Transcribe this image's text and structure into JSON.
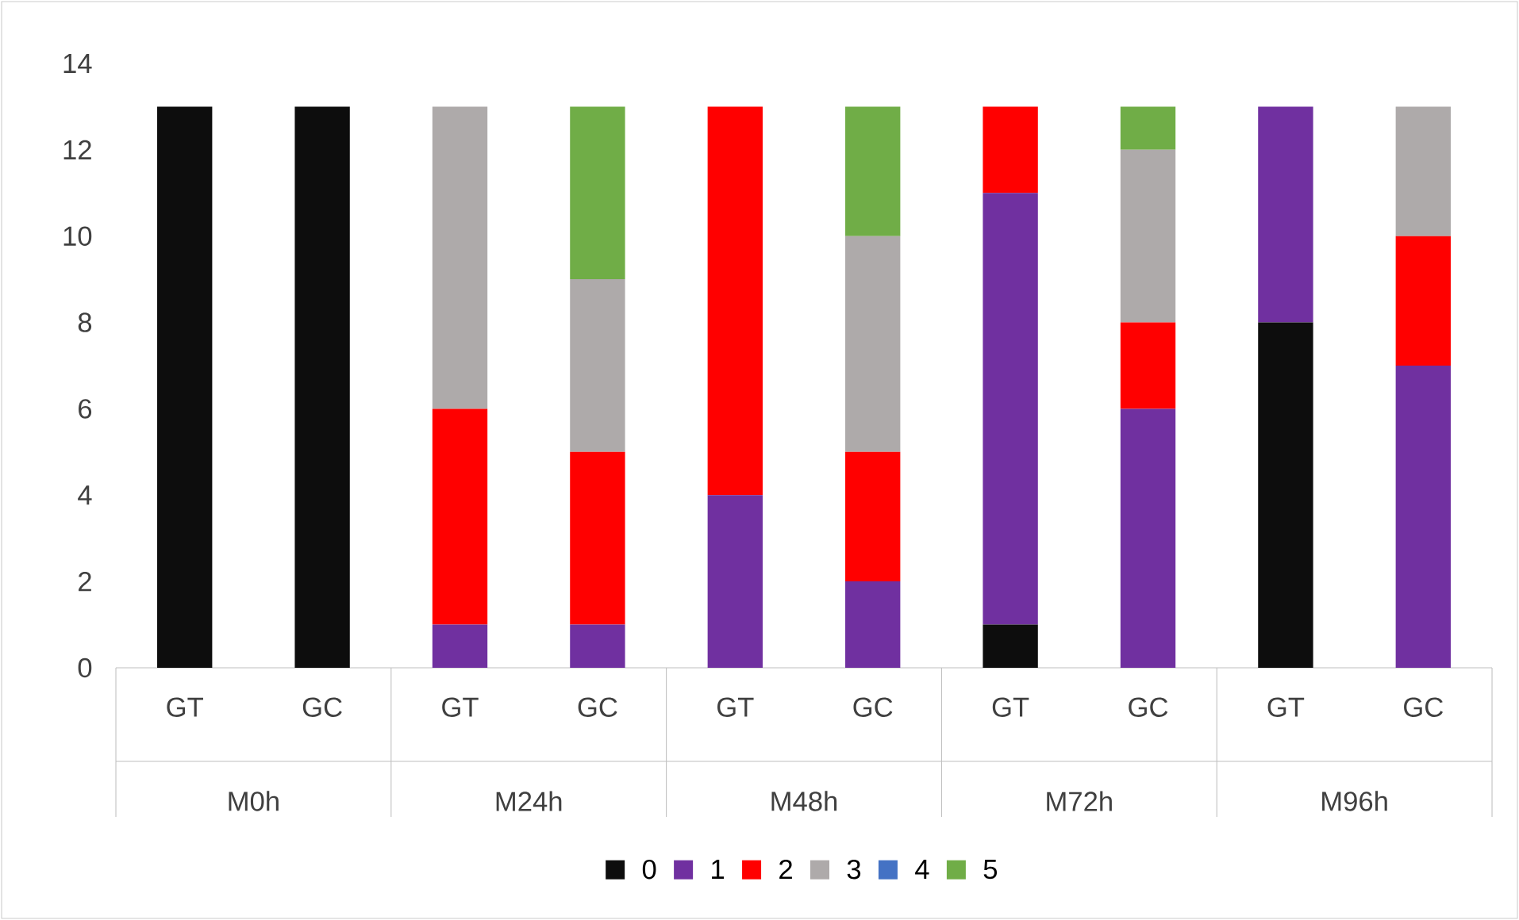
{
  "chart_data": {
    "type": "bar",
    "stacked": true,
    "legend": "bottom",
    "categories": [
      "GT",
      "GC",
      "GT",
      "GC",
      "GT",
      "GC",
      "GT",
      "GC",
      "GT",
      "GC"
    ],
    "annotations": [
      "M0h",
      "M24h",
      "M48h",
      "M72h",
      "M96h"
    ],
    "ylim": [
      0,
      14
    ],
    "yticks": [
      0,
      2,
      4,
      6,
      8,
      10,
      12,
      14
    ],
    "series": [
      {
        "name": "0",
        "color": "#0d0d0d",
        "values": [
          13,
          13,
          0,
          0,
          0,
          0,
          1,
          0,
          8,
          0
        ]
      },
      {
        "name": "1",
        "color": "#7030a0",
        "values": [
          0,
          0,
          1,
          1,
          4,
          2,
          10,
          6,
          5,
          7
        ]
      },
      {
        "name": "2",
        "color": "#ff0000",
        "values": [
          0,
          0,
          5,
          4,
          9,
          3,
          2,
          2,
          0,
          3
        ]
      },
      {
        "name": "3",
        "color": "#aeaaaa",
        "values": [
          0,
          0,
          7,
          4,
          0,
          5,
          0,
          4,
          0,
          3
        ]
      },
      {
        "name": "4",
        "color": "#4472c4",
        "values": [
          0,
          0,
          0,
          0,
          0,
          0,
          0,
          0,
          0,
          0
        ]
      },
      {
        "name": "5",
        "color": "#70ad47",
        "values": [
          0,
          0,
          0,
          4,
          0,
          3,
          0,
          1,
          0,
          0
        ]
      }
    ]
  }
}
